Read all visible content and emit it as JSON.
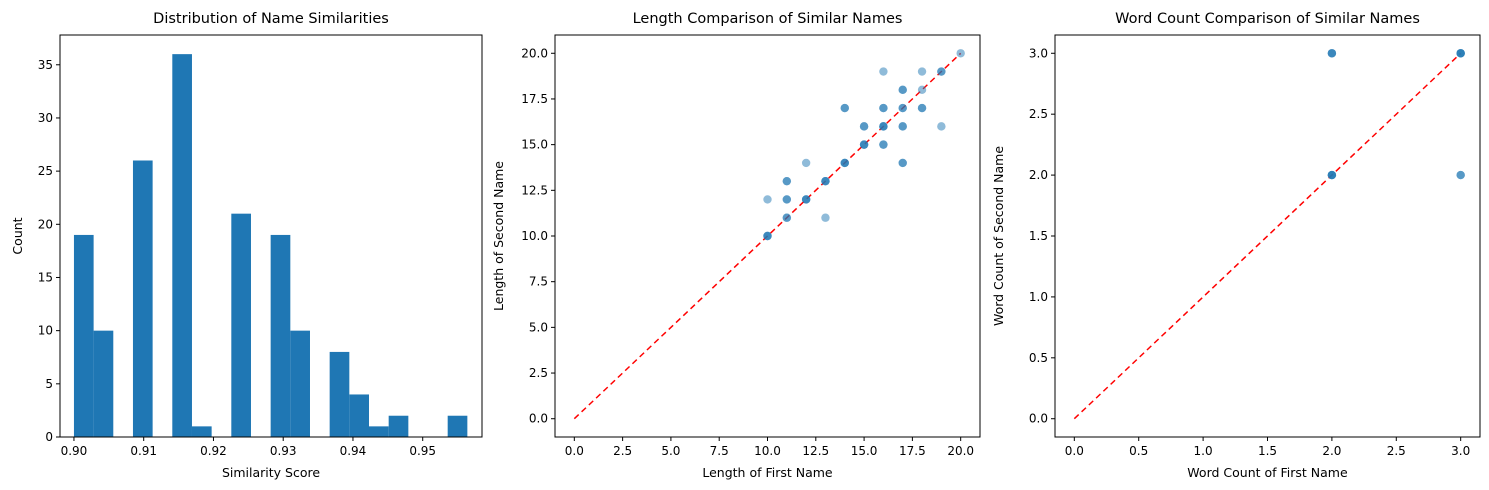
{
  "chart_data": [
    {
      "type": "bar",
      "title": "Distribution of Name Similarities",
      "xlabel": "Similarity Score",
      "ylabel": "Count",
      "xlim": [
        0.898,
        0.9585
      ],
      "ylim": [
        0,
        37.8
      ],
      "xticks": [
        0.9,
        0.91,
        0.92,
        0.93,
        0.94,
        0.95
      ],
      "xtick_labels": [
        "0.90",
        "0.91",
        "0.92",
        "0.93",
        "0.94",
        "0.95"
      ],
      "yticks": [
        0,
        5,
        10,
        15,
        20,
        25,
        30,
        35
      ],
      "ytick_labels": [
        "0",
        "5",
        "10",
        "15",
        "20",
        "25",
        "30",
        "35"
      ],
      "bin_start": 0.9,
      "bin_width": 0.00282,
      "values": [
        19,
        10,
        0,
        26,
        0,
        36,
        1,
        0,
        21,
        0,
        19,
        10,
        0,
        8,
        4,
        1,
        2,
        0,
        0,
        2
      ],
      "color": "#1f77b4",
      "grid": false
    },
    {
      "type": "scatter",
      "title": "Length Comparison of Similar Names",
      "xlabel": "Length of First Name",
      "ylabel": "Length of Second Name",
      "xlim": [
        -1,
        21
      ],
      "ylim": [
        -1,
        21
      ],
      "xticks": [
        0,
        2.5,
        5,
        7.5,
        10,
        12.5,
        15,
        17.5,
        20
      ],
      "xtick_labels": [
        "0.0",
        "2.5",
        "5.0",
        "7.5",
        "10.0",
        "12.5",
        "15.0",
        "17.5",
        "20.0"
      ],
      "yticks": [
        0,
        2.5,
        5,
        7.5,
        10,
        12.5,
        15,
        17.5,
        20
      ],
      "ytick_labels": [
        "0.0",
        "2.5",
        "5.0",
        "7.5",
        "10.0",
        "12.5",
        "15.0",
        "17.5",
        "20.0"
      ],
      "points": [
        [
          10,
          10
        ],
        [
          10,
          10
        ],
        [
          10,
          10
        ],
        [
          10,
          12
        ],
        [
          11,
          11
        ],
        [
          11,
          11
        ],
        [
          11,
          12
        ],
        [
          11,
          12
        ],
        [
          11,
          13
        ],
        [
          11,
          13
        ],
        [
          12,
          12
        ],
        [
          12,
          12
        ],
        [
          12,
          12
        ],
        [
          12,
          14
        ],
        [
          13,
          13
        ],
        [
          13,
          13
        ],
        [
          13,
          13
        ],
        [
          13,
          11
        ],
        [
          14,
          14
        ],
        [
          14,
          14
        ],
        [
          14,
          14
        ],
        [
          14,
          17
        ],
        [
          14,
          17
        ],
        [
          15,
          15
        ],
        [
          15,
          15
        ],
        [
          15,
          15
        ],
        [
          15,
          16
        ],
        [
          15,
          16
        ],
        [
          16,
          16
        ],
        [
          16,
          16
        ],
        [
          16,
          16
        ],
        [
          16,
          15
        ],
        [
          16,
          15
        ],
        [
          16,
          17
        ],
        [
          16,
          17
        ],
        [
          16,
          19
        ],
        [
          17,
          17
        ],
        [
          17,
          17
        ],
        [
          17,
          18
        ],
        [
          17,
          18
        ],
        [
          17,
          16
        ],
        [
          17,
          16
        ],
        [
          17,
          14
        ],
        [
          17,
          14
        ],
        [
          18,
          17
        ],
        [
          18,
          17
        ],
        [
          18,
          18
        ],
        [
          18,
          19
        ],
        [
          19,
          19
        ],
        [
          19,
          19
        ],
        [
          19,
          16
        ],
        [
          20,
          20
        ]
      ],
      "reference_line": {
        "from": [
          0,
          0
        ],
        "to": [
          20,
          20
        ],
        "color": "#ff0000",
        "style": "dashed"
      },
      "color": "#1f77b4",
      "grid": false
    },
    {
      "type": "scatter",
      "title": "Word Count Comparison of Similar Names",
      "xlabel": "Word Count of First Name",
      "ylabel": "Word Count of Second Name",
      "xlim": [
        -0.15,
        3.15
      ],
      "ylim": [
        -0.15,
        3.15
      ],
      "xticks": [
        0,
        0.5,
        1,
        1.5,
        2,
        2.5,
        3
      ],
      "xtick_labels": [
        "0.0",
        "0.5",
        "1.0",
        "1.5",
        "2.0",
        "2.5",
        "3.0"
      ],
      "yticks": [
        0,
        0.5,
        1,
        1.5,
        2,
        2.5,
        3
      ],
      "ytick_labels": [
        "0.0",
        "0.5",
        "1.0",
        "1.5",
        "2.0",
        "2.5",
        "3.0"
      ],
      "points": [
        [
          2,
          2
        ],
        [
          2,
          2
        ],
        [
          2,
          2
        ],
        [
          2,
          2
        ],
        [
          2,
          3
        ],
        [
          2,
          3
        ],
        [
          2,
          3
        ],
        [
          3,
          3
        ],
        [
          3,
          3
        ],
        [
          3,
          3
        ],
        [
          3,
          3
        ],
        [
          3,
          2
        ],
        [
          3,
          2
        ]
      ],
      "reference_line": {
        "from": [
          0,
          0
        ],
        "to": [
          3,
          3
        ],
        "color": "#ff0000",
        "style": "dashed"
      },
      "color": "#1f77b4",
      "grid": false
    }
  ]
}
